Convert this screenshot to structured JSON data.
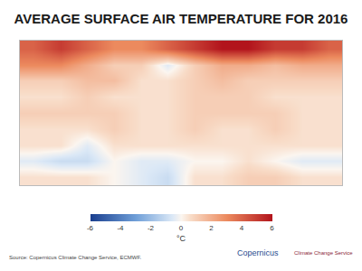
{
  "chart_data": {
    "type": "heatmap",
    "title": "AVERAGE SURFACE AIR TEMPERATURE FOR 2016",
    "annotations": [
      "Source: Copernicus Climate Change Service, ECMWF.",
      "Copernicus",
      "Climate Change Service"
    ],
    "xlim": [
      -180,
      180
    ],
    "ylim": [
      -90,
      90
    ],
    "tick_labels": false,
    "cells": {
      "x": [
        -165,
        -135,
        -105,
        -75,
        -45,
        -15,
        15,
        45,
        75,
        105,
        135,
        165
      ],
      "y": [
        80,
        60,
        40,
        20,
        0,
        -20,
        -40,
        -60,
        -80
      ],
      "z": [
        [
          4,
          5,
          4,
          3,
          3,
          4,
          5,
          6,
          6,
          5,
          5,
          4
        ],
        [
          3,
          3,
          2,
          1,
          1,
          -0.5,
          1,
          2,
          2,
          1.5,
          2,
          2
        ],
        [
          1,
          1,
          1.5,
          1.5,
          0.5,
          0.5,
          1,
          1.5,
          1,
          1,
          1,
          1
        ],
        [
          0.5,
          0.5,
          1,
          0.5,
          0.5,
          0.5,
          1,
          1,
          1,
          0.5,
          0.5,
          0.5
        ],
        [
          1,
          1,
          1,
          1,
          0.5,
          0.5,
          1,
          1,
          1,
          1,
          0.5,
          0.5
        ],
        [
          0.5,
          0.5,
          0.5,
          1,
          0.5,
          0.5,
          1,
          0.5,
          0.5,
          1,
          0.5,
          0.5
        ],
        [
          0.5,
          0.5,
          -0.5,
          0.5,
          0.5,
          0.5,
          0.5,
          0.5,
          0.5,
          0.5,
          0.5,
          0.5
        ],
        [
          -0.5,
          -1,
          -1,
          0,
          -0.5,
          -0.5,
          0,
          0,
          0.5,
          0,
          -0.5,
          -0.5
        ],
        [
          0.5,
          0.5,
          0.5,
          0,
          -0.5,
          -1,
          0.5,
          0.5,
          1,
          1,
          0.5,
          0.5
        ]
      ]
    },
    "colorbar": {
      "range": [
        -6,
        6
      ],
      "ticks": [
        -6,
        -4,
        -2,
        0,
        2,
        4,
        6
      ],
      "label": "°C"
    }
  }
}
